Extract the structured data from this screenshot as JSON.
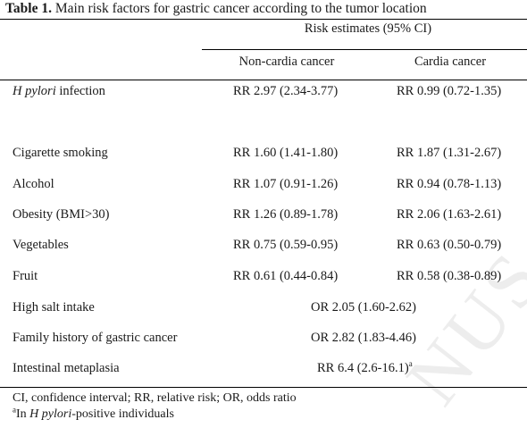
{
  "table": {
    "caption_label": "Table 1.",
    "caption_text": " Main risk factors for gastric cancer according to the tumor location",
    "group_header": "Risk estimates (95% CI)",
    "col_noncardia": "Non-cardia cancer",
    "col_cardia": "Cardia cancer",
    "rows": [
      {
        "label_italic": "H pylori",
        "label": " infection",
        "noncardia": "RR 2.97 (2.34-3.77)",
        "cardia": "RR 0.99 (0.72-1.35)"
      },
      {
        "label": "Cigarette smoking",
        "noncardia": "RR 1.60 (1.41-1.80)",
        "cardia": "RR 1.87 (1.31-2.67)"
      },
      {
        "label": "Alcohol",
        "noncardia": "RR 1.07 (0.91-1.26)",
        "cardia": "RR 0.94 (0.78-1.13)"
      },
      {
        "label": "Obesity (BMI>30)",
        "noncardia": "RR 1.26 (0.89-1.78)",
        "cardia": "RR 2.06 (1.63-2.61)"
      },
      {
        "label": "Vegetables",
        "noncardia": "RR 0.75 (0.59-0.95)",
        "cardia": "RR 0.63 (0.50-0.79)"
      },
      {
        "label": "Fruit",
        "noncardia": "RR 0.61 (0.44-0.84)",
        "cardia": "RR 0.58 (0.38-0.89)"
      },
      {
        "label": "High salt intake",
        "combined": "OR 2.05 (1.60-2.62)"
      },
      {
        "label": "Family history of gastric cancer",
        "combined": "OR 2.82 (1.83-4.46)"
      },
      {
        "label": "Intestinal metaplasia",
        "combined": "RR 6.4 (2.6-16.1)",
        "combined_sup": "a"
      }
    ],
    "footnote1": "CI, confidence interval; RR, relative risk; OR, odds ratio",
    "footnote2_sup": "a",
    "footnote2_pre": "In ",
    "footnote2_italic": "H pylori",
    "footnote2_post": "-positive individuals"
  },
  "watermark": "NUS C"
}
